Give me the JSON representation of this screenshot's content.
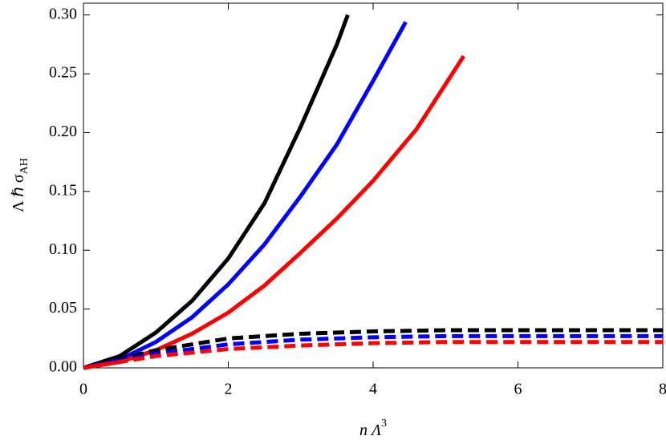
{
  "chart_data": {
    "type": "line",
    "xlabel": "n Λ",
    "xlabel_sup": "3",
    "ylabel": "Λ ℏ σ",
    "ylabel_sub": "AH",
    "xlim": [
      0,
      8
    ],
    "ylim": [
      0,
      0.31
    ],
    "xticks": [
      0,
      2,
      4,
      6,
      8
    ],
    "yticks": [
      {
        "value": 0,
        "label": "0.00"
      },
      {
        "value": 0.05,
        "label": "0.05"
      },
      {
        "value": 0.1,
        "label": "0.10"
      },
      {
        "value": 0.15,
        "label": "0.15"
      },
      {
        "value": 0.2,
        "label": "0.20"
      },
      {
        "value": 0.25,
        "label": "0.25"
      },
      {
        "value": 0.3,
        "label": "0.30"
      }
    ],
    "series": [
      {
        "color": "#000000",
        "dashed": false,
        "x": [
          0,
          0.5,
          1,
          1.5,
          2,
          2.5,
          3,
          3.5,
          3.65
        ],
        "values": [
          0,
          0.01,
          0.03,
          0.057,
          0.093,
          0.14,
          0.205,
          0.275,
          0.3
        ]
      },
      {
        "color": "#0000ff",
        "dashed": false,
        "x": [
          0,
          0.5,
          1,
          1.5,
          2,
          2.5,
          3,
          3.5,
          4,
          4.45
        ],
        "values": [
          0,
          0.007,
          0.022,
          0.043,
          0.071,
          0.105,
          0.146,
          0.19,
          0.244,
          0.294
        ]
      },
      {
        "color": "#ff0000",
        "dashed": false,
        "x": [
          0,
          0.5,
          1,
          1.5,
          2,
          2.5,
          3,
          3.5,
          4,
          4.6,
          5.25
        ],
        "values": [
          0,
          0.005,
          0.015,
          0.029,
          0.047,
          0.07,
          0.098,
          0.127,
          0.159,
          0.203,
          0.265
        ]
      },
      {
        "color": "#000000",
        "dashed": true,
        "x": [
          0,
          1,
          2,
          3,
          4,
          5,
          6,
          7,
          8
        ],
        "values": [
          0,
          0.015,
          0.025,
          0.029,
          0.031,
          0.032,
          0.032,
          0.032,
          0.032
        ]
      },
      {
        "color": "#0000ff",
        "dashed": true,
        "x": [
          0,
          1,
          2,
          3,
          4,
          5,
          6,
          7,
          8
        ],
        "values": [
          0,
          0.012,
          0.02,
          0.024,
          0.026,
          0.027,
          0.027,
          0.027,
          0.027
        ]
      },
      {
        "color": "#ff0000",
        "dashed": true,
        "x": [
          0,
          1,
          2,
          3,
          4,
          5,
          6,
          7,
          8
        ],
        "values": [
          0,
          0.01,
          0.016,
          0.019,
          0.021,
          0.022,
          0.022,
          0.022,
          0.022
        ]
      }
    ]
  }
}
